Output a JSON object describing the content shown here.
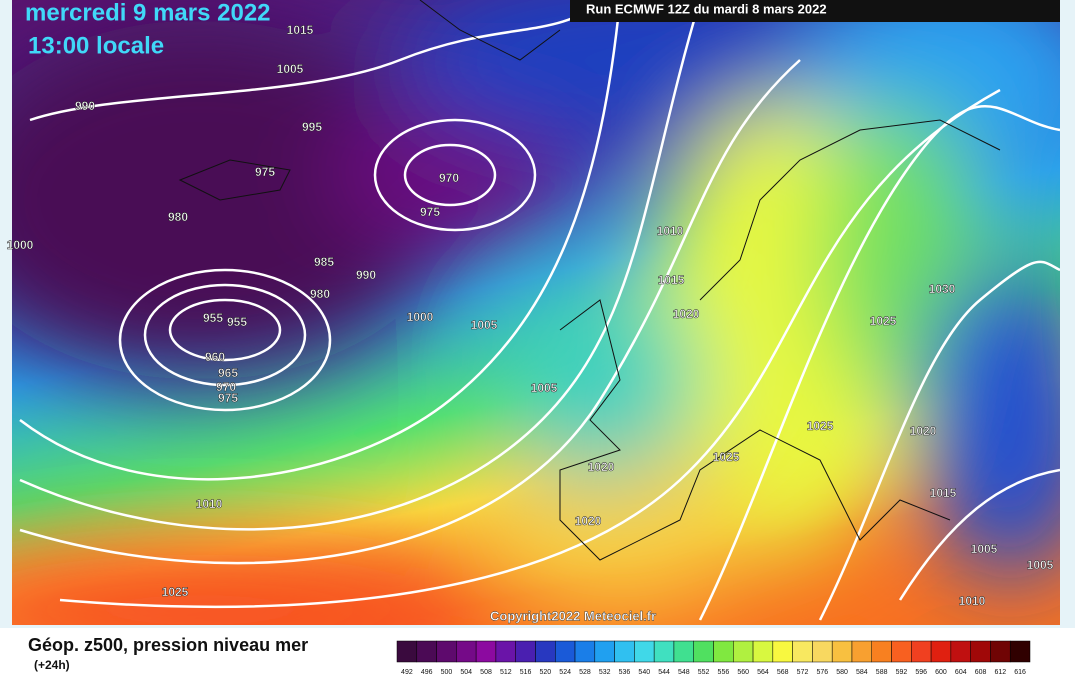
{
  "header": {
    "date": "mercredi 9 mars 2022",
    "time": "13:00 locale",
    "run": "Run ECMWF 12Z du mardi 8 mars 2022"
  },
  "map": {
    "isobar_labels": [
      "1015",
      "1005",
      "990",
      "995",
      "975",
      "970",
      "975",
      "980",
      "1000",
      "985",
      "990",
      "980",
      "955",
      "955",
      "1000",
      "1005",
      "960",
      "965",
      "970",
      "975",
      "1010",
      "1015",
      "1020",
      "1005",
      "1030",
      "1025",
      "1025",
      "1020",
      "1020",
      "1025",
      "1015",
      "1020",
      "1010",
      "1005",
      "1005",
      "1025",
      "1010"
    ],
    "copyright": "Copyright2022 Meteociel.fr"
  },
  "legend": {
    "title": "Géop. z500, pression niveau mer",
    "subtitle": "(+24h)",
    "colors": [
      "#3a0a3e",
      "#4b0a55",
      "#5e0a6d",
      "#750a88",
      "#8c0aa0",
      "#6a14a8",
      "#4a1fb0",
      "#2838c0",
      "#1a5ad8",
      "#1a7ee8",
      "#20a0f0",
      "#30c0f0",
      "#40d8e8",
      "#40e0c0",
      "#40e090",
      "#50e060",
      "#80e840",
      "#b0f040",
      "#d8f840",
      "#f8f840",
      "#f8e860",
      "#f8d860",
      "#f8c040",
      "#f8a030",
      "#f88020",
      "#f86020",
      "#f04020",
      "#e02010",
      "#c01010",
      "#a00808",
      "#700404",
      "#300000"
    ],
    "labels": [
      "492",
      "496",
      "500",
      "504",
      "508",
      "512",
      "516",
      "520",
      "524",
      "528",
      "532",
      "536",
      "540",
      "544",
      "548",
      "552",
      "556",
      "560",
      "564",
      "568",
      "572",
      "576",
      "580",
      "584",
      "588",
      "592",
      "596",
      "600",
      "604",
      "608",
      "612",
      "616"
    ]
  }
}
